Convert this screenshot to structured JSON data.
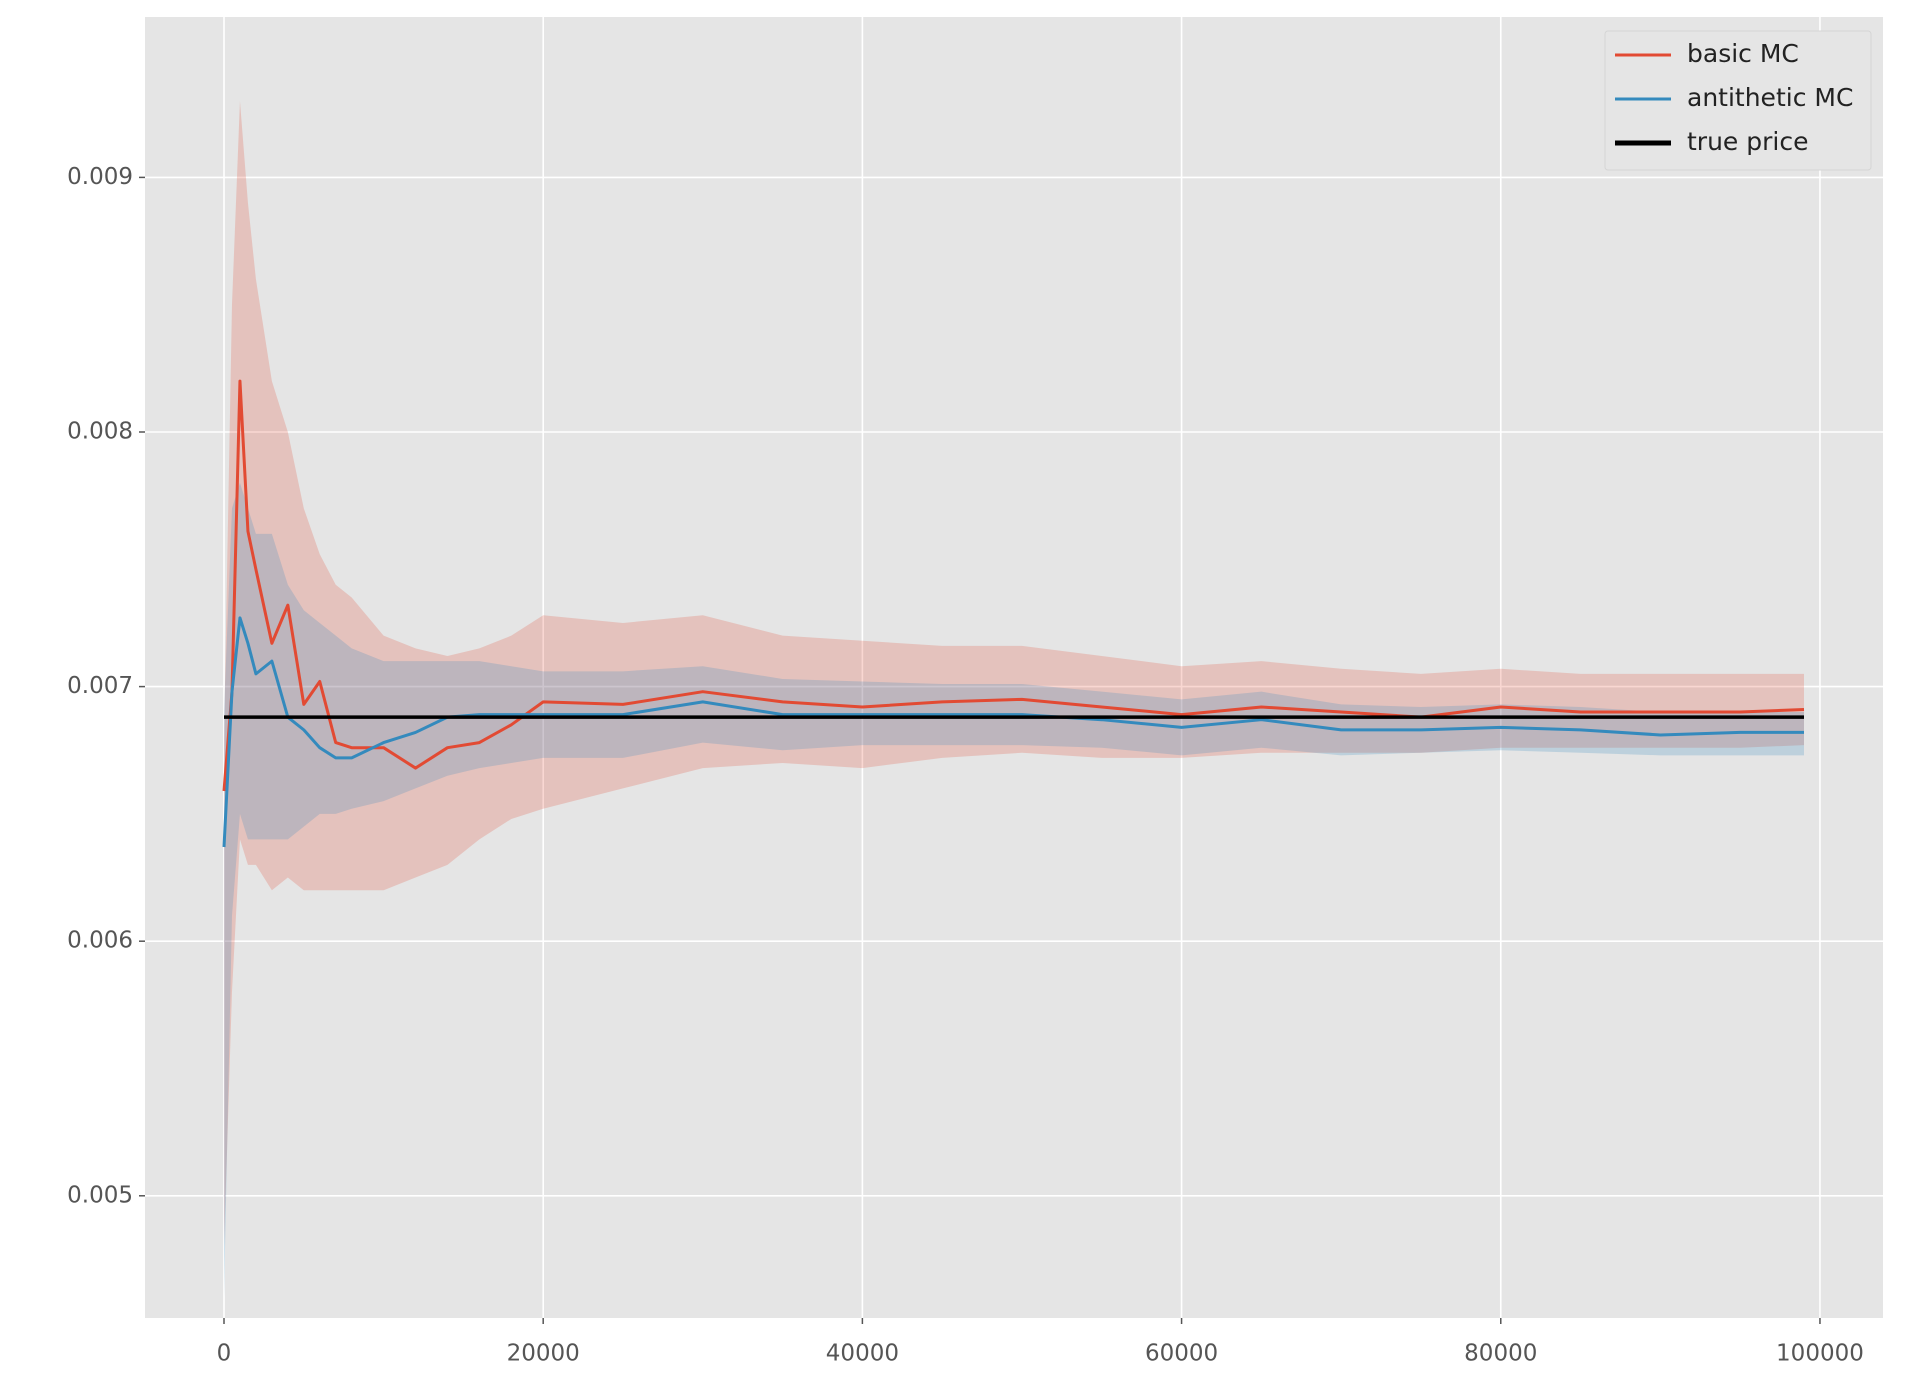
{
  "chart_data": {
    "type": "line",
    "x": [
      0,
      500,
      1000,
      1500,
      2000,
      3000,
      4000,
      5000,
      6000,
      7000,
      8000,
      10000,
      12000,
      14000,
      16000,
      18000,
      20000,
      25000,
      30000,
      35000,
      40000,
      45000,
      50000,
      55000,
      60000,
      65000,
      70000,
      75000,
      80000,
      85000,
      90000,
      95000,
      99000
    ],
    "series": [
      {
        "name": "basic MC",
        "color": "#E24A33",
        "values": [
          0.00659,
          0.00698,
          0.0082,
          0.00761,
          0.00746,
          0.00717,
          0.00732,
          0.00693,
          0.00702,
          0.00678,
          0.00676,
          0.00676,
          0.00668,
          0.00676,
          0.00678,
          0.00685,
          0.00694,
          0.00693,
          0.00698,
          0.00694,
          0.00692,
          0.00694,
          0.00695,
          0.00692,
          0.00689,
          0.00692,
          0.0069,
          0.00688,
          0.00692,
          0.0069,
          0.0069,
          0.0069,
          0.00691
        ],
        "lower": [
          0.0048,
          0.0058,
          0.0064,
          0.0063,
          0.0063,
          0.0062,
          0.00625,
          0.0062,
          0.0062,
          0.0062,
          0.0062,
          0.0062,
          0.00625,
          0.0063,
          0.0064,
          0.00648,
          0.00652,
          0.0066,
          0.00668,
          0.0067,
          0.00668,
          0.00672,
          0.00674,
          0.00672,
          0.00672,
          0.00674,
          0.00674,
          0.00674,
          0.00676,
          0.00676,
          0.00676,
          0.00676,
          0.00677
        ],
        "upper": [
          0.0068,
          0.0085,
          0.0093,
          0.0089,
          0.0086,
          0.0082,
          0.008,
          0.0077,
          0.00752,
          0.0074,
          0.00735,
          0.0072,
          0.00715,
          0.00712,
          0.00715,
          0.0072,
          0.00728,
          0.00725,
          0.00728,
          0.0072,
          0.00718,
          0.00716,
          0.00716,
          0.00712,
          0.00708,
          0.0071,
          0.00707,
          0.00705,
          0.00707,
          0.00705,
          0.00705,
          0.00705,
          0.00705
        ]
      },
      {
        "name": "antithetic MC",
        "color": "#348ABD",
        "values": [
          0.00637,
          0.00698,
          0.00727,
          0.00717,
          0.00705,
          0.0071,
          0.00688,
          0.00683,
          0.00676,
          0.00672,
          0.00672,
          0.00678,
          0.00682,
          0.00688,
          0.00689,
          0.00689,
          0.00689,
          0.00689,
          0.00694,
          0.00689,
          0.00689,
          0.00689,
          0.00689,
          0.00687,
          0.00684,
          0.00687,
          0.00683,
          0.00683,
          0.00684,
          0.00683,
          0.00681,
          0.00682,
          0.00682
        ],
        "lower": [
          0.0046,
          0.0061,
          0.0065,
          0.0064,
          0.0064,
          0.0064,
          0.0064,
          0.00645,
          0.0065,
          0.0065,
          0.00652,
          0.00655,
          0.0066,
          0.00665,
          0.00668,
          0.0067,
          0.00672,
          0.00672,
          0.00678,
          0.00675,
          0.00677,
          0.00677,
          0.00677,
          0.00676,
          0.00673,
          0.00676,
          0.00673,
          0.00674,
          0.00675,
          0.00674,
          0.00673,
          0.00673,
          0.00673
        ],
        "upper": [
          0.0069,
          0.0077,
          0.0078,
          0.0077,
          0.0076,
          0.0076,
          0.0074,
          0.0073,
          0.00725,
          0.0072,
          0.00715,
          0.0071,
          0.0071,
          0.0071,
          0.0071,
          0.00708,
          0.00706,
          0.00706,
          0.00708,
          0.00703,
          0.00702,
          0.00701,
          0.00701,
          0.00698,
          0.00695,
          0.00698,
          0.00693,
          0.00692,
          0.00693,
          0.00692,
          0.0069,
          0.0069,
          0.0069
        ]
      },
      {
        "name": "true price",
        "color": "#000000",
        "x": [
          0,
          99000
        ],
        "values": [
          0.00688,
          0.00688
        ]
      }
    ],
    "xlim": [
      -4950,
      103950
    ],
    "xticks": [
      0,
      20000,
      40000,
      60000,
      80000,
      100000
    ],
    "ylim": [
      0.00452,
      0.00963
    ],
    "yticks": [
      0.005,
      0.006,
      0.007,
      0.008,
      0.009
    ],
    "grid": true,
    "legend": "upper right",
    "background": "#E5E5E5",
    "band_opacity": 0.22
  }
}
